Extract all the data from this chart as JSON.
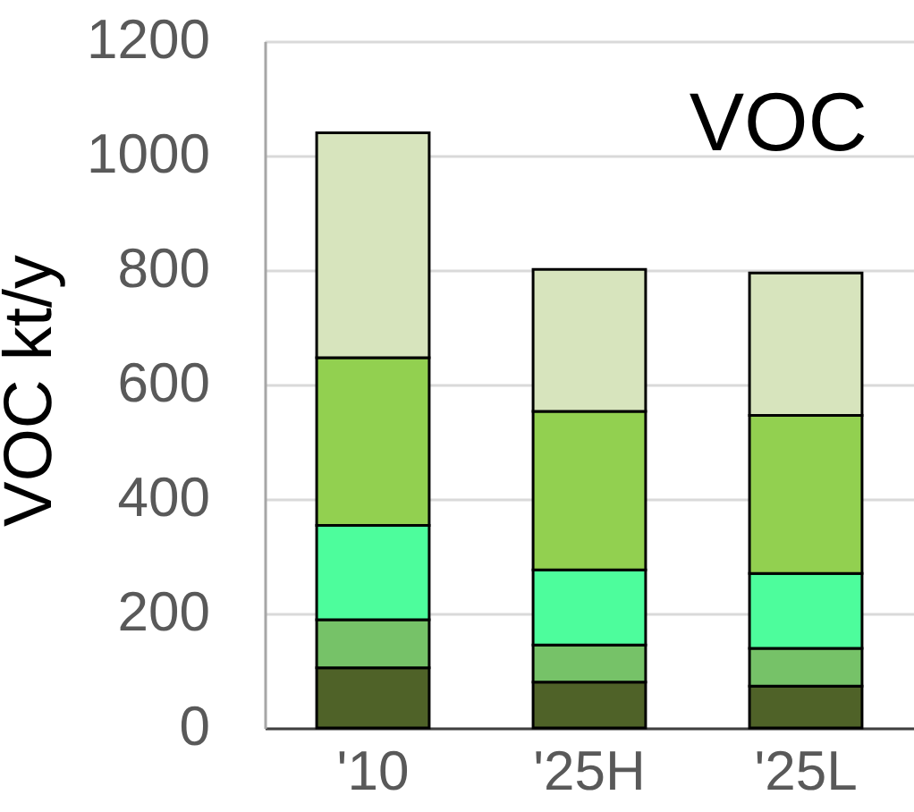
{
  "chart_data": {
    "type": "bar",
    "stacked": true,
    "ylabel": "VOC kt/y",
    "annotations": [
      "VOC"
    ],
    "categories": [
      "'10",
      "'25H",
      "'25L"
    ],
    "series": [
      {
        "color": "#4f6228",
        "values": [
          105,
          80,
          73
        ]
      },
      {
        "color": "#76c268",
        "values": [
          84,
          65,
          66
        ]
      },
      {
        "color": "#4dfd9c",
        "values": [
          165,
          131,
          131
        ]
      },
      {
        "color": "#92d050",
        "values": [
          293,
          277,
          276
        ]
      },
      {
        "color": "#d7e4bd",
        "values": [
          393,
          248,
          249
        ]
      }
    ],
    "ylim": [
      0,
      1200
    ],
    "yticks": [
      0,
      200,
      400,
      600,
      800,
      1000,
      1200
    ],
    "grid": "y"
  }
}
